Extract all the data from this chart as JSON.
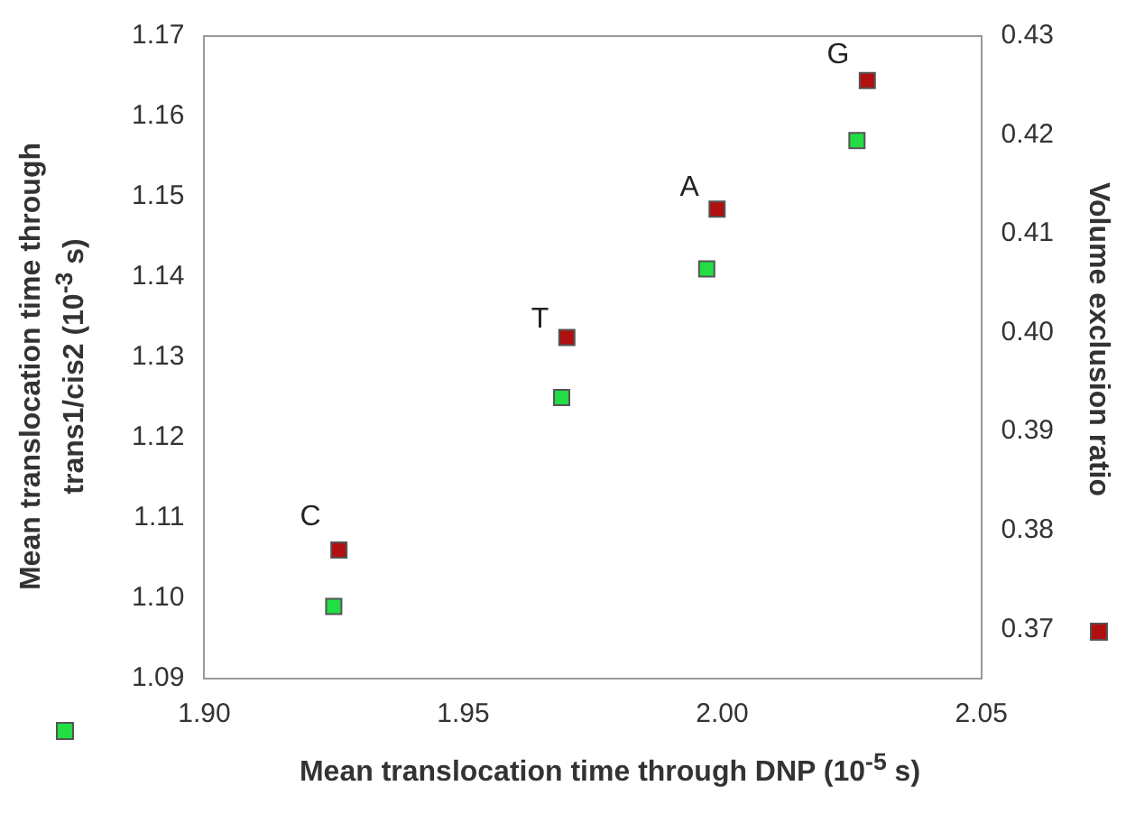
{
  "chart_data": {
    "type": "scatter",
    "xlabel": "Mean translocation time through DNP (10$^{-5}$ s)",
    "ylabel": "Mean translocation time through trans1/cis2 (10$^{-3}$ s)",
    "y2label": "Volume exclusion ratio",
    "series": [
      {
        "color": "#22dd44",
        "x": [
          1.925,
          1.969,
          1.997,
          2.026
        ],
        "values": [
          1.099,
          1.125,
          1.141,
          1.157
        ]
      },
      {
        "color": "#b01010",
        "axis": "y2",
        "x": [
          1.926,
          1.97,
          1.999,
          2.028
        ],
        "values": [
          0.378,
          0.3995,
          0.4125,
          0.4255
        ]
      }
    ],
    "annotations": [
      {
        "text": "C",
        "x": 1.926,
        "y": 1.107
      },
      {
        "text": "T",
        "x": 1.97,
        "y": 1.1315
      },
      {
        "text": "A",
        "x": 1.999,
        "y": 1.148
      },
      {
        "text": "G",
        "x": 2.028,
        "y": 1.1645
      }
    ],
    "xlim": [
      1.9,
      2.05
    ],
    "xticks": [
      {
        "value": 1.9,
        "label": "1.90"
      },
      1.95,
      {
        "value": 2,
        "label": "2.00"
      },
      2.05
    ],
    "ylim": [
      1.09,
      1.17
    ],
    "yticks": [
      1.09,
      {
        "value": 1.1,
        "label": "1.10"
      },
      1.11,
      1.12,
      1.13,
      1.14,
      1.15,
      1.16,
      1.17
    ],
    "y2lim": [
      0.365,
      0.43
    ],
    "y2ticks": [
      0.37,
      0.38,
      0.39,
      {
        "value": 0.4,
        "label": "0.40"
      },
      0.41,
      0.42,
      0.43
    ],
    "marker": "square",
    "grid": false,
    "legend": false
  }
}
